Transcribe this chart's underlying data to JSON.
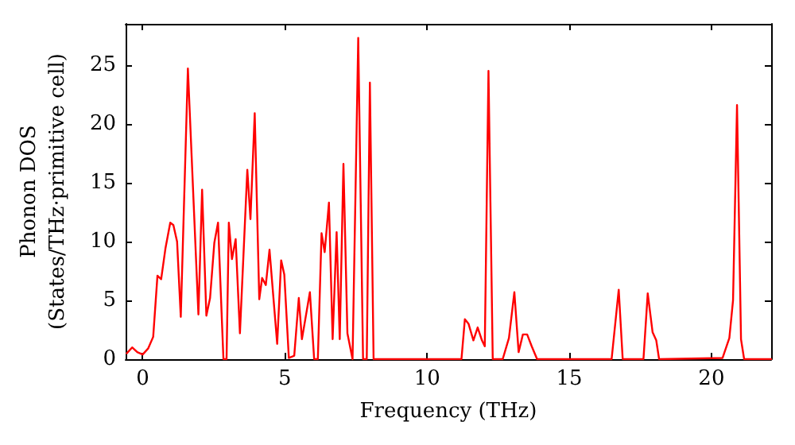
{
  "chart_data": {
    "type": "line",
    "xlabel": "Frequency (THz)",
    "ylabel": "Phonon DOS\n(States/THz·primitive cell)",
    "xlim": [
      -0.6,
      22.1
    ],
    "ylim": [
      0,
      28.5
    ],
    "xticks": [
      0,
      5,
      10,
      15,
      20
    ],
    "yticks": [
      0,
      5,
      10,
      15,
      20,
      25
    ],
    "grid": false,
    "marker": "none",
    "line_style": "solid",
    "series": [
      {
        "color": "#ff0000",
        "x": [
          -0.56,
          -0.37,
          -0.19,
          0,
          0.19,
          0.37,
          0.52,
          0.65,
          0.8,
          0.97,
          1.08,
          1.21,
          1.34,
          1.59,
          1.96,
          2.09,
          2.24,
          2.37,
          2.52,
          2.65,
          2.84,
          2.95,
          3.03,
          3.14,
          3.27,
          3.42,
          3.68,
          3.79,
          3.94,
          4.1,
          4.2,
          4.33,
          4.46,
          4.73,
          4.87,
          4.98,
          5.14,
          5.33,
          5.49,
          5.6,
          5.88,
          6.03,
          6.16,
          6.29,
          6.4,
          6.55,
          6.68,
          6.82,
          6.93,
          7.06,
          7.2,
          7.38,
          7.58,
          7.75,
          7.88,
          7.99,
          8.12,
          11.21,
          11.33,
          11.46,
          11.63,
          11.78,
          11.93,
          12.03,
          12.16,
          12.31,
          12.66,
          12.88,
          13.07,
          13.22,
          13.37,
          13.52,
          13.68,
          13.87,
          16.49,
          16.74,
          16.88,
          17.61,
          17.76,
          17.93,
          18.06,
          18.16,
          20.39,
          20.63,
          20.76,
          20.9,
          21.04,
          21.15,
          22.1
        ],
        "values": [
          0.5,
          1.0,
          0.6,
          0.4,
          0.9,
          1.9,
          7.1,
          6.8,
          9.4,
          11.6,
          11.4,
          10.0,
          3.6,
          24.7,
          3.8,
          14.4,
          3.7,
          5.2,
          9.9,
          11.6,
          0,
          0,
          11.6,
          8.5,
          10.2,
          2.2,
          16.1,
          11.9,
          20.9,
          5.1,
          6.9,
          6.3,
          9.3,
          1.3,
          8.4,
          7.2,
          0.1,
          0.3,
          5.2,
          1.7,
          5.7,
          0,
          0,
          10.7,
          9.1,
          13.3,
          1.7,
          10.8,
          1.7,
          16.6,
          2.2,
          0,
          27.3,
          0,
          0,
          23.5,
          0,
          0,
          3.4,
          3.0,
          1.6,
          2.7,
          1.6,
          1.1,
          24.5,
          0,
          0,
          1.8,
          5.7,
          0.6,
          2.1,
          2.1,
          1.1,
          0,
          0,
          5.9,
          0,
          0,
          5.6,
          2.3,
          1.6,
          0,
          0.1,
          1.8,
          5.0,
          21.6,
          1.7,
          0,
          0
        ]
      }
    ]
  }
}
